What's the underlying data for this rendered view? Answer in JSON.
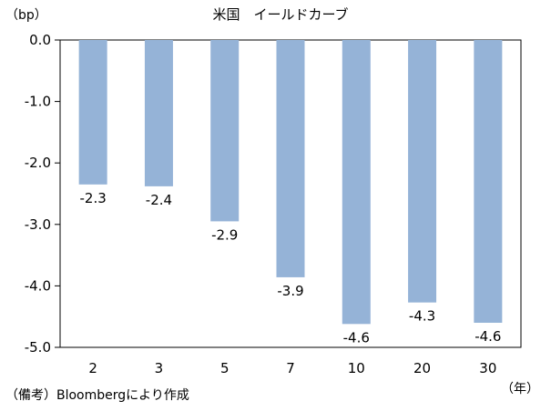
{
  "chart_data": {
    "type": "bar",
    "title": "米国　イールドカーブ",
    "y_unit": "（bp）",
    "x_unit": "（年）",
    "categories": [
      "2",
      "3",
      "5",
      "7",
      "10",
      "20",
      "30"
    ],
    "values": [
      -2.35,
      -2.38,
      -2.95,
      -3.86,
      -4.62,
      -4.27,
      -4.6
    ],
    "data_labels": [
      "-2.3",
      "-2.4",
      "-2.9",
      "-3.9",
      "-4.6",
      "-4.3",
      "-4.6"
    ],
    "yticks": [
      0,
      -1,
      -2,
      -3,
      -4,
      -5
    ],
    "ytick_labels": [
      "0.0",
      "-1.0",
      "-2.0",
      "-3.0",
      "-4.0",
      "-5.0"
    ],
    "ylim": [
      -5,
      0
    ],
    "grid": false,
    "legend": "none",
    "bar_color": "#95B3D7",
    "note": "（備考）Bloombergにより作成"
  }
}
